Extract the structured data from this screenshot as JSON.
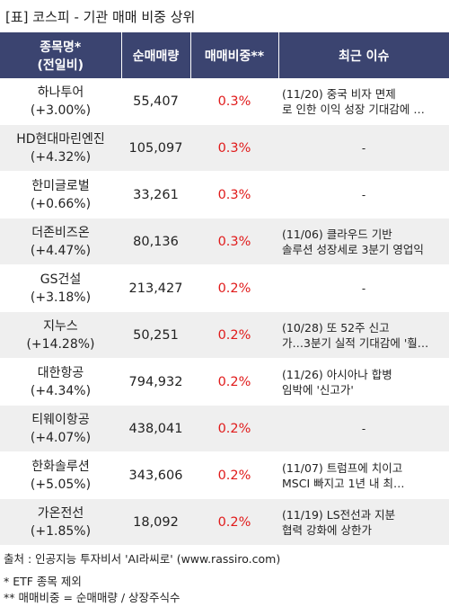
{
  "title": "[표] 코스피 - 기관 매매 비중 상위",
  "header": {
    "col1_line1": "종목명*",
    "col1_line2": "(전일비)",
    "col2": "순매매량",
    "col3": "매매비중**",
    "col4": "최근 이슈"
  },
  "rows": [
    {
      "name": "하나투어",
      "change": "(+3.00%)",
      "volume": "55,407",
      "ratio": "0.3%",
      "issue_line1": "(11/20) 중국 비자 면제",
      "issue_line2": "로 인한 이익 성장 기대감에 …"
    },
    {
      "name": "HD현대마린엔진",
      "change": "(+4.32%)",
      "volume": "105,097",
      "ratio": "0.3%",
      "issue_line1": "-",
      "issue_line2": ""
    },
    {
      "name": "한미글로벌",
      "change": "(+0.66%)",
      "volume": "33,261",
      "ratio": "0.3%",
      "issue_line1": "-",
      "issue_line2": ""
    },
    {
      "name": "더존비즈온",
      "change": "(+4.47%)",
      "volume": "80,136",
      "ratio": "0.3%",
      "issue_line1": "(11/06) 클라우드 기반",
      "issue_line2": "솔루션 성장세로 3분기 영업익"
    },
    {
      "name": "GS건설",
      "change": "(+3.18%)",
      "volume": "213,427",
      "ratio": "0.2%",
      "issue_line1": "-",
      "issue_line2": ""
    },
    {
      "name": "지누스",
      "change": "(+14.28%)",
      "volume": "50,251",
      "ratio": "0.2%",
      "issue_line1": "(10/28) 또 52주 신고",
      "issue_line2": "가…3분기 실적 기대감에 '훨…"
    },
    {
      "name": "대한항공",
      "change": "(+4.34%)",
      "volume": "794,932",
      "ratio": "0.2%",
      "issue_line1": "(11/26) 아시아나 합병",
      "issue_line2": "임박에 '신고가'"
    },
    {
      "name": "티웨이항공",
      "change": "(+4.07%)",
      "volume": "438,041",
      "ratio": "0.2%",
      "issue_line1": "-",
      "issue_line2": ""
    },
    {
      "name": "한화솔루션",
      "change": "(+5.05%)",
      "volume": "343,606",
      "ratio": "0.2%",
      "issue_line1": "(11/07) 트럼프에 치이고",
      "issue_line2": "MSCI 빠지고 1년 내 최…"
    },
    {
      "name": "가온전선",
      "change": "(+1.85%)",
      "volume": "18,092",
      "ratio": "0.2%",
      "issue_line1": "(11/19) LS전선과 지분",
      "issue_line2": "협력 강화에 상한가"
    }
  ],
  "footer": {
    "source": "출처 : 인공지능 투자비서 'AI라씨로' (www.rassiro.com)",
    "note1": "* ETF 종목 제외",
    "note2": "** 매매비중 = 순매매량 / 상장주식수"
  },
  "colors": {
    "header_bg": "#3b4470",
    "ratio_text": "#e01b1b",
    "stripe": "#efefef"
  }
}
